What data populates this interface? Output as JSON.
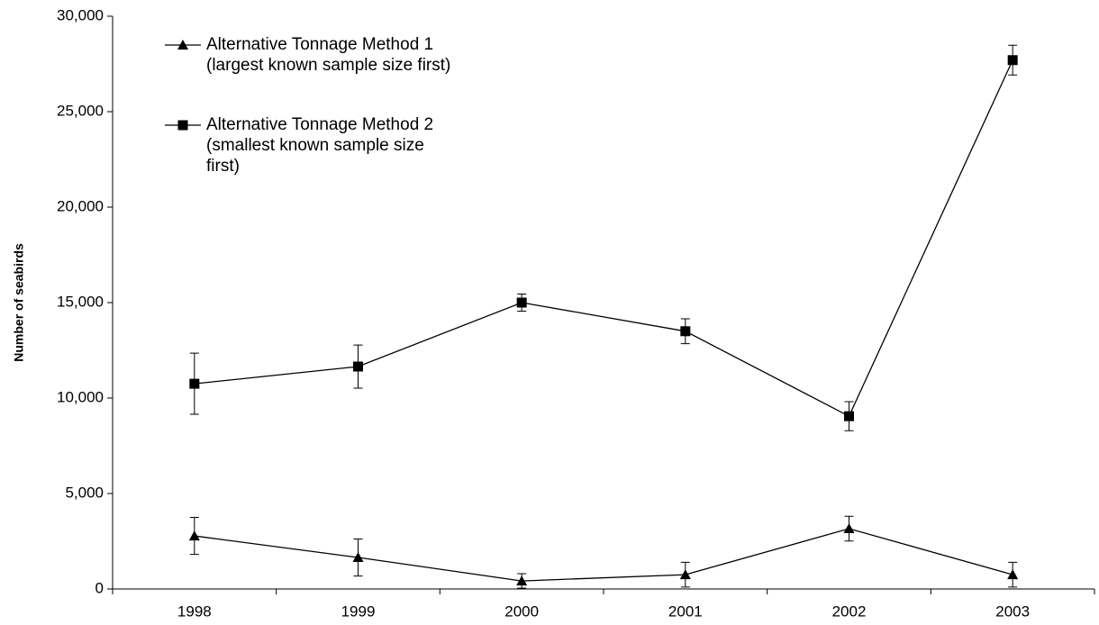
{
  "chart_data": {
    "type": "line",
    "y_label": "Number of seabirds",
    "categories": [
      "1998",
      "1999",
      "2000",
      "2001",
      "2002",
      "2003"
    ],
    "series": [
      {
        "name": "Alternative Tonnage Method 1\n(largest known sample size first)",
        "color": "#000000",
        "marker": "triangle",
        "values": [
          2780,
          1650,
          420,
          750,
          3160,
          750
        ],
        "errors": [
          970,
          970,
          380,
          650,
          650,
          650
        ]
      },
      {
        "name": "Alternative Tonnage Method 2\n(smallest known sample size\nfirst)",
        "color": "#000000",
        "marker": "square",
        "values": [
          10750,
          11650,
          15000,
          13500,
          9050,
          27700
        ],
        "errors": [
          1600,
          1130,
          450,
          650,
          760,
          780
        ]
      }
    ],
    "ylim": [
      0,
      30000
    ],
    "yticks": [
      {
        "value": 0,
        "label": "0"
      },
      {
        "value": 5000,
        "label": "5,000"
      },
      {
        "value": 10000,
        "label": "10,000"
      },
      {
        "value": 15000,
        "label": "15,000"
      },
      {
        "value": 20000,
        "label": "20,000"
      },
      {
        "value": 25000,
        "label": "25,000"
      },
      {
        "value": 30000,
        "label": "30,000"
      }
    ],
    "legend": "upper left"
  }
}
